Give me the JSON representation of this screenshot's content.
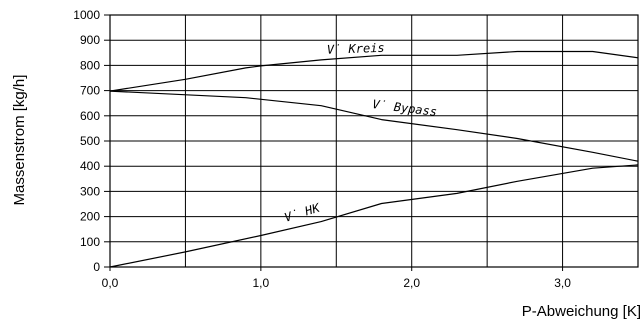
{
  "chart_data": {
    "type": "line",
    "xlabel": "P-Abweichung [K]",
    "ylabel": "Massenstrom [kg/h]",
    "xlim": [
      0,
      3.5
    ],
    "ylim": [
      0,
      1000
    ],
    "x_ticks": [
      0,
      1,
      2,
      3
    ],
    "x_tick_labels": [
      "0,0",
      "1,0",
      "2,0",
      "3,0"
    ],
    "x_grid": [
      0.5,
      1.0,
      1.5,
      2.0,
      2.5,
      3.0
    ],
    "y_ticks": [
      0,
      100,
      200,
      300,
      400,
      500,
      600,
      700,
      800,
      900,
      1000
    ],
    "y_tick_labels": [
      "0",
      "100",
      "200",
      "300",
      "400",
      "500",
      "600",
      "700",
      "800",
      "900",
      "1000"
    ],
    "grid": true,
    "series": [
      {
        "name": "V̇ Kreis",
        "x": [
          0,
          0.5,
          0.9,
          1.0,
          1.4,
          1.8,
          2.3,
          2.7,
          3.2,
          3.5
        ],
        "y": [
          698,
          745,
          790,
          798,
          822,
          840,
          840,
          855,
          855,
          830
        ]
      },
      {
        "name": "V̇ Bypass",
        "x": [
          0,
          0.9,
          1.4,
          1.8,
          2.3,
          2.7,
          3.2,
          3.5
        ],
        "y": [
          698,
          672,
          640,
          585,
          545,
          510,
          455,
          420
        ]
      },
      {
        "name": "V̇ HK",
        "x": [
          0,
          0.5,
          1.0,
          1.4,
          1.8,
          2.3,
          2.7,
          3.2,
          3.5
        ],
        "y": [
          0,
          60,
          125,
          180,
          252,
          292,
          340,
          392,
          405
        ]
      }
    ],
    "colors": {
      "line": "#000000",
      "grid": "#000000",
      "background": "#ffffff"
    }
  }
}
